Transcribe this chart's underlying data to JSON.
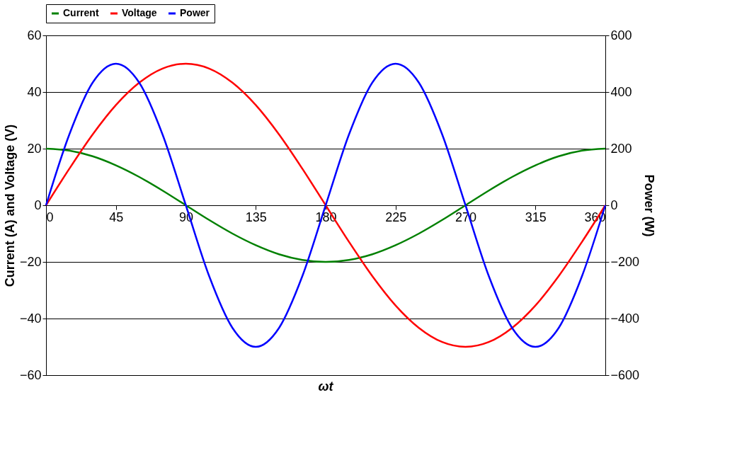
{
  "chart_data": {
    "type": "line",
    "xlabel": "ωt",
    "ylabel": "Current (A) and Voltage (V)",
    "y2label": "Power (W)",
    "x": [
      0,
      15,
      30,
      45,
      60,
      75,
      90,
      105,
      120,
      135,
      150,
      165,
      180,
      195,
      210,
      225,
      240,
      255,
      270,
      285,
      300,
      315,
      330,
      345,
      360
    ],
    "xlim": [
      0,
      360
    ],
    "xticks": [
      0,
      45,
      90,
      135,
      180,
      225,
      270,
      315,
      360
    ],
    "ylim": [
      -60,
      60
    ],
    "yticks": [
      -60,
      -40,
      -20,
      0,
      20,
      40,
      60
    ],
    "y2lim": [
      -600,
      600
    ],
    "y2ticks": [
      -600,
      -400,
      -200,
      0,
      200,
      400,
      600
    ],
    "grid": "y",
    "legend": "top",
    "line_style": "solid",
    "marker": "none",
    "series": [
      {
        "name": "Current",
        "color": "#008000",
        "values": [
          20,
          19.3,
          17.3,
          14.1,
          10,
          5.2,
          0,
          -5.2,
          -10,
          -14.1,
          -17.3,
          -19.3,
          -20,
          -19.3,
          -17.3,
          -14.1,
          -10,
          -5.2,
          0,
          5.2,
          10,
          14.1,
          17.3,
          19.3,
          20
        ]
      },
      {
        "name": "Voltage",
        "color": "#ff0000",
        "values": [
          0,
          12.9,
          25,
          35.4,
          43.3,
          48.3,
          50,
          48.3,
          43.3,
          35.4,
          25,
          12.9,
          0,
          -12.9,
          -25,
          -35.4,
          -43.3,
          -48.3,
          -50,
          -48.3,
          -43.3,
          -35.4,
          -25,
          -12.9,
          0
        ]
      },
      {
        "name": "Power",
        "color": "#0000ff",
        "axis": "y2",
        "values": [
          0,
          250,
          433,
          500,
          433,
          250,
          0,
          -250,
          -433,
          -500,
          -433,
          -250,
          0,
          250,
          433,
          500,
          433,
          250,
          0,
          -250,
          -433,
          -500,
          -433,
          -250,
          0
        ]
      }
    ]
  }
}
